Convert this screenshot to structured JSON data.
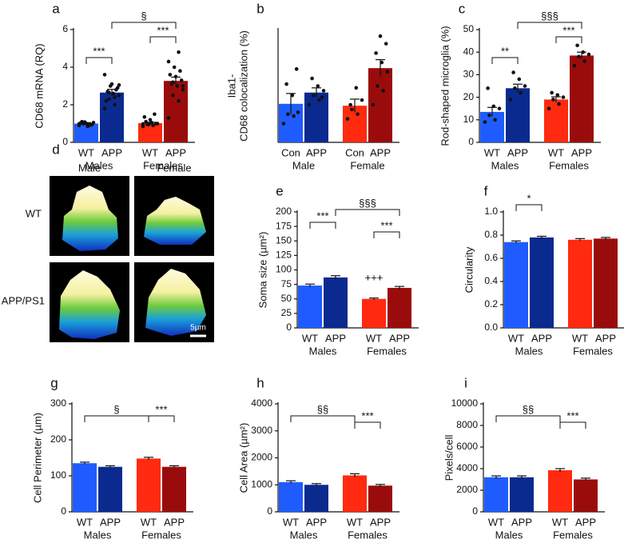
{
  "chart_data": [
    {
      "type": "bar",
      "panel": "a",
      "ylabel": "CD68 mRNA (RQ)",
      "categories": [
        "WT",
        "APP",
        "WT",
        "APP"
      ],
      "group_labels": [
        "Males",
        "Females"
      ],
      "values": [
        1.0,
        2.65,
        1.02,
        3.27
      ],
      "errors": [
        0.05,
        0.17,
        0.05,
        0.2
      ],
      "points": [
        [
          0.9,
          0.95,
          1.0,
          1.05,
          0.85,
          1.1,
          0.95,
          1.0,
          1.02,
          0.92,
          1.08,
          0.98
        ],
        [
          1.8,
          2.0,
          2.3,
          2.5,
          2.6,
          2.7,
          2.9,
          3.1,
          2.2,
          2.8,
          3.0,
          3.6,
          2.4,
          2.65,
          3.05
        ],
        [
          0.85,
          0.9,
          0.95,
          1.0,
          1.05,
          1.1,
          1.0,
          1.2,
          1.35,
          1.5,
          0.95,
          0.98
        ],
        [
          1.3,
          2.2,
          2.5,
          2.8,
          3.0,
          3.1,
          3.3,
          3.5,
          3.6,
          3.8,
          4.0,
          4.3,
          4.8,
          3.2,
          3.0
        ]
      ],
      "colors": [
        "#1f5cff",
        "#0b2a8f",
        "#ff2a10",
        "#9a0c0c"
      ],
      "ylim": [
        0,
        6
      ],
      "yticks": [
        0,
        2,
        4,
        6
      ],
      "annotations": [
        "***",
        "***",
        "§"
      ]
    },
    {
      "type": "bar",
      "panel": "b",
      "ylabel": [
        "Iba1-",
        "CD68 colocalization (%)"
      ],
      "categories": [
        "Con",
        "APP",
        "Con",
        "APP"
      ],
      "group_labels": [
        "Male",
        "Female"
      ],
      "values": [
        4.1,
        5.3,
        3.9,
        7.9
      ],
      "errors": [
        1.1,
        0.5,
        0.7,
        0.9
      ],
      "points": [
        [
          2.0,
          2.8,
          3.0,
          3.2,
          5.0,
          6.2,
          7.8
        ],
        [
          4.0,
          4.5,
          5.0,
          5.5,
          6.0,
          6.8,
          4.8
        ],
        [
          2.5,
          3.0,
          3.5,
          4.5,
          5.8,
          4.0
        ],
        [
          4.0,
          5.5,
          6.0,
          7.5,
          8.5,
          9.5,
          10.5,
          11.3
        ]
      ],
      "colors": [
        "#1f5cff",
        "#0b2a8f",
        "#ff2a10",
        "#9a0c0c"
      ],
      "ylim": [
        0,
        12
      ],
      "annotations": []
    },
    {
      "type": "bar",
      "panel": "c",
      "ylabel": "Rod-shaped microglia (%)",
      "categories": [
        "WT",
        "APP",
        "WT",
        "APP"
      ],
      "group_labels": [
        "Males",
        "Females"
      ],
      "values": [
        13.5,
        24,
        19,
        38.5
      ],
      "errors": [
        2,
        1.8,
        1.2,
        1.5
      ],
      "points": [
        [
          9,
          10,
          12,
          15,
          16,
          24
        ],
        [
          19,
          22,
          24,
          25,
          28,
          31
        ],
        [
          15,
          17,
          19,
          20,
          21,
          22
        ],
        [
          34,
          36,
          38,
          39,
          40,
          43
        ]
      ],
      "colors": [
        "#1f5cff",
        "#0b2a8f",
        "#ff2a10",
        "#9a0c0c"
      ],
      "ylim": [
        0,
        50
      ],
      "yticks": [
        0,
        10,
        20,
        30,
        40,
        50
      ],
      "annotations": [
        "**",
        "***",
        "§§§"
      ]
    },
    {
      "type": "bar",
      "panel": "e",
      "ylabel": "Soma size (µm²)",
      "categories": [
        "WT",
        "APP",
        "WT",
        "APP"
      ],
      "group_labels": [
        "Males",
        "Females"
      ],
      "values": [
        73,
        87,
        50,
        69
      ],
      "errors": [
        2.5,
        3,
        1.5,
        2.5
      ],
      "colors": [
        "#1f5cff",
        "#0b2a8f",
        "#ff2a10",
        "#9a0c0c"
      ],
      "ylim": [
        0,
        200
      ],
      "yticks": [
        0,
        25,
        50,
        75,
        100,
        125,
        150,
        175,
        200
      ],
      "annotations": [
        "***",
        "§§§",
        "***",
        "+++"
      ]
    },
    {
      "type": "bar",
      "panel": "f",
      "ylabel": "Circularity",
      "categories": [
        "WT",
        "APP",
        "WT",
        "APP"
      ],
      "group_labels": [
        "Males",
        "Females"
      ],
      "values": [
        0.74,
        0.78,
        0.76,
        0.77
      ],
      "errors": [
        0.01,
        0.01,
        0.01,
        0.01
      ],
      "colors": [
        "#1f5cff",
        "#0b2a8f",
        "#ff2a10",
        "#9a0c0c"
      ],
      "ylim": [
        0,
        1
      ],
      "yticks": [
        {
          "value": 0,
          "label": "0.0"
        },
        0.2,
        0.4,
        0.6,
        0.8,
        {
          "value": 1,
          "label": "1.0"
        }
      ],
      "annotations": [
        "*"
      ]
    },
    {
      "type": "bar",
      "panel": "g",
      "ylabel": "Cell Perimeter (µm)",
      "categories": [
        "WT",
        "APP",
        "WT",
        "APP"
      ],
      "group_labels": [
        "Males",
        "Females"
      ],
      "values": [
        135,
        125,
        148,
        125
      ],
      "errors": [
        3,
        3,
        3.5,
        3
      ],
      "colors": [
        "#1f5cff",
        "#0b2a8f",
        "#ff2a10",
        "#9a0c0c"
      ],
      "ylim": [
        0,
        300
      ],
      "yticks": [
        0,
        100,
        200,
        300
      ],
      "annotations": [
        "§",
        "***"
      ]
    },
    {
      "type": "bar",
      "panel": "h",
      "ylabel": "Cell Area (µm²)",
      "categories": [
        "WT",
        "APP",
        "WT",
        "APP"
      ],
      "group_labels": [
        "Males",
        "Females"
      ],
      "values": [
        1100,
        1000,
        1350,
        970
      ],
      "errors": [
        50,
        45,
        60,
        45
      ],
      "colors": [
        "#1f5cff",
        "#0b2a8f",
        "#ff2a10",
        "#9a0c0c"
      ],
      "ylim": [
        0,
        4000
      ],
      "yticks": [
        0,
        1000,
        2000,
        3000,
        4000
      ],
      "annotations": [
        "§§",
        "***"
      ]
    },
    {
      "type": "bar",
      "panel": "i",
      "ylabel": "Pixels/cell",
      "categories": [
        "WT",
        "APP",
        "WT",
        "APP"
      ],
      "group_labels": [
        "Males",
        "Females"
      ],
      "values": [
        3200,
        3200,
        3850,
        3000
      ],
      "errors": [
        130,
        130,
        150,
        120
      ],
      "colors": [
        "#1f5cff",
        "#0b2a8f",
        "#ff2a10",
        "#9a0c0c"
      ],
      "ylim": [
        0,
        10000
      ],
      "yticks": [
        0,
        2000,
        4000,
        6000,
        8000,
        10000
      ],
      "annotations": [
        "§§",
        "***"
      ]
    }
  ],
  "image_panel": {
    "panel": "d",
    "columns": [
      "Male",
      "Female"
    ],
    "rows": [
      "WT",
      "APP/PS1"
    ],
    "scale_bar": "5µm"
  }
}
